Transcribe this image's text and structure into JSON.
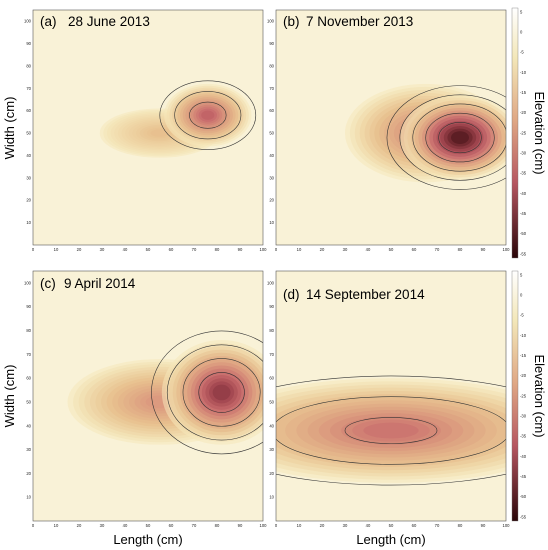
{
  "chart_data": [
    {
      "type": "heatmap",
      "panel_label": "(a)",
      "title": "28 June 2013",
      "xlabel": "",
      "ylabel": "Width (cm)",
      "xlim": [
        0,
        100
      ],
      "ylim": [
        0,
        105
      ],
      "xticks": [
        0,
        10,
        20,
        30,
        40,
        50,
        60,
        70,
        80,
        90,
        100
      ],
      "yticks": [
        10,
        20,
        30,
        40,
        50,
        60,
        70,
        80,
        90,
        100
      ],
      "min_elevation": -35,
      "deep_regions": [
        {
          "x": 76,
          "y": 58,
          "rx": 19,
          "ry": 14,
          "depth": -32
        },
        {
          "x": 55,
          "y": 50,
          "rx": 26,
          "ry": 11,
          "depth": -10
        }
      ],
      "contour_levels": [
        -30,
        -20,
        -10,
        0,
        5
      ]
    },
    {
      "type": "heatmap",
      "panel_label": "(b)",
      "title": "7 November 2013",
      "xlabel": "",
      "ylabel": "",
      "xlim": [
        0,
        100
      ],
      "ylim": [
        0,
        105
      ],
      "xticks": [
        0,
        10,
        20,
        30,
        40,
        50,
        60,
        70,
        80,
        90,
        100
      ],
      "yticks": [
        10,
        20,
        30,
        40,
        50,
        60,
        70,
        80,
        90,
        100
      ],
      "min_elevation": -55,
      "deep_regions": [
        {
          "x": 80,
          "y": 48,
          "rx": 26,
          "ry": 19,
          "depth": -52
        },
        {
          "x": 65,
          "y": 50,
          "rx": 35,
          "ry": 22,
          "depth": -25
        }
      ],
      "contour_levels": [
        -50,
        -40,
        -30,
        -20,
        -10,
        0,
        5
      ]
    },
    {
      "type": "heatmap",
      "panel_label": "(c)",
      "title": "9 April 2014",
      "xlabel": "Length (cm)",
      "ylabel": "Width (cm)",
      "xlim": [
        0,
        100
      ],
      "ylim": [
        0,
        105
      ],
      "xticks": [
        0,
        10,
        20,
        30,
        40,
        50,
        60,
        70,
        80,
        90,
        100
      ],
      "yticks": [
        10,
        20,
        30,
        40,
        50,
        60,
        70,
        80,
        90,
        100
      ],
      "min_elevation": -45,
      "deep_regions": [
        {
          "x": 82,
          "y": 54,
          "rx": 26,
          "ry": 22,
          "depth": -42
        },
        {
          "x": 55,
          "y": 50,
          "rx": 40,
          "ry": 18,
          "depth": -20
        }
      ],
      "contour_levels": [
        -40,
        -30,
        -20,
        -10,
        0,
        5
      ]
    },
    {
      "type": "heatmap",
      "panel_label": "(d)",
      "title": "14 September 2014",
      "xlabel": "Length (cm)",
      "ylabel": "",
      "xlim": [
        0,
        100
      ],
      "ylim": [
        0,
        105
      ],
      "xticks": [
        0,
        10,
        20,
        30,
        40,
        50,
        60,
        70,
        80,
        90,
        100
      ],
      "yticks": [
        10,
        20,
        30,
        40,
        50,
        60,
        70,
        80,
        90,
        100
      ],
      "min_elevation": -30,
      "deep_regions": [
        {
          "x": 50,
          "y": 38,
          "rx": 80,
          "ry": 22,
          "depth": -28
        }
      ],
      "contour_levels": [
        -30,
        -20,
        -10,
        0
      ]
    }
  ],
  "colorbars": [
    {
      "label": "Elevation (cm)",
      "ticks": [
        "5",
        "0",
        "-5",
        "-10",
        "-15",
        "-20",
        "-25",
        "-30",
        "-35",
        "-40",
        "-45",
        "-50",
        "-55"
      ],
      "range": [
        5,
        -55
      ]
    },
    {
      "label": "Elevation (cm)",
      "ticks": [
        "5",
        "0",
        "-5",
        "-10",
        "-15",
        "-20",
        "-25",
        "-30",
        "-35",
        "-40",
        "-45",
        "-50",
        "-55"
      ],
      "range": [
        5,
        -55
      ]
    }
  ],
  "colors": {
    "high": "#fbf6e4",
    "mid_light": "#eed8a6",
    "mid": "#dca37f",
    "mid_dark": "#c46a6e",
    "low": "#3d0f12",
    "contour": "#333333"
  }
}
